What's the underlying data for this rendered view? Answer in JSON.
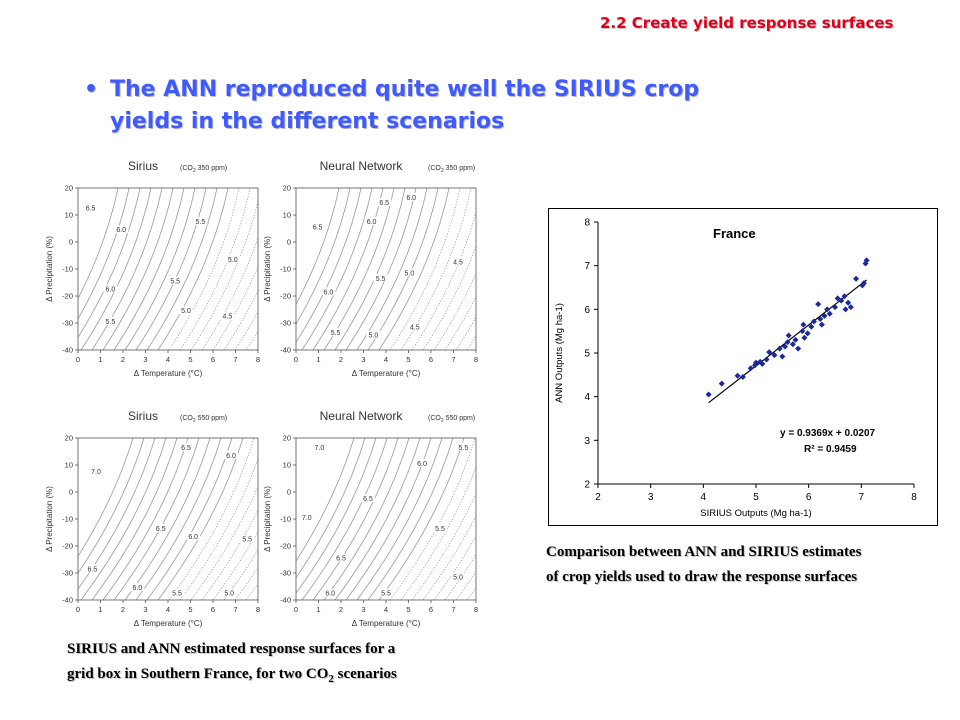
{
  "header": {
    "section": "2.2 Create yield response surfaces"
  },
  "bullet": {
    "marker": "•",
    "line1": "The ANN reproduced quite well the SIRIUS crop",
    "line2": "yields in the different scenarios"
  },
  "captions": {
    "left_line1": "SIRIUS and ANN estimated response surfaces for a",
    "left_line2_prefix": "grid box in Southern France, for two CO",
    "left_line2_sub": "2",
    "left_line2_suffix": " scenarios",
    "right_line1": "Comparison between ANN and SIRIUS estimates",
    "right_line2": "of crop yields used to draw the response surfaces"
  },
  "colors": {
    "section": "#e0001b",
    "bullet": "#3f5bff",
    "marker": "#1a2a9c",
    "contour": "#9a9a9a"
  },
  "panels_common": {
    "xlabel": "Δ Temperature (°C)",
    "ylabel": "Δ Precipitation (%)",
    "xticks": [
      "0",
      "1",
      "2",
      "3",
      "4",
      "5",
      "6",
      "7",
      "8"
    ],
    "yticks": [
      "20",
      "10",
      "0",
      "-10",
      "-20",
      "-30",
      "-40"
    ]
  },
  "panels": [
    {
      "name": "Sirius",
      "co2_prefix": "(CO",
      "co2_sub": "2",
      "co2_suffix": " 350 ppm)",
      "labels": [
        {
          "t": "6.5",
          "x": 0.7,
          "y": 12
        },
        {
          "t": "6.0",
          "x": 2.4,
          "y": 4
        },
        {
          "t": "5.5",
          "x": 6.8,
          "y": 7
        },
        {
          "t": "5.0",
          "x": 8.6,
          "y": -7
        },
        {
          "t": "6.0",
          "x": 1.8,
          "y": -18
        },
        {
          "t": "5.5",
          "x": 5.4,
          "y": -15
        },
        {
          "t": "5.0",
          "x": 6.0,
          "y": -26
        },
        {
          "t": "5.5",
          "x": 1.8,
          "y": -30
        },
        {
          "t": "4.5",
          "x": 8.3,
          "y": -28
        }
      ]
    },
    {
      "name": "Neural Network",
      "co2_prefix": "(CO",
      "co2_sub": "2",
      "co2_suffix": " 350 ppm)",
      "labels": [
        {
          "t": "6.5",
          "x": 1.2,
          "y": 5
        },
        {
          "t": "6.0",
          "x": 4.2,
          "y": 7
        },
        {
          "t": "6.5",
          "x": 4.9,
          "y": 14
        },
        {
          "t": "6.0",
          "x": 6.4,
          "y": 16
        },
        {
          "t": "4.5",
          "x": 9.0,
          "y": -8
        },
        {
          "t": "5.5",
          "x": 4.7,
          "y": -14
        },
        {
          "t": "5.0",
          "x": 6.3,
          "y": -12
        },
        {
          "t": "6.0",
          "x": 1.8,
          "y": -19
        },
        {
          "t": "5.5",
          "x": 2.2,
          "y": -34
        },
        {
          "t": "5.0",
          "x": 4.3,
          "y": -35
        },
        {
          "t": "4.5",
          "x": 6.6,
          "y": -32
        }
      ]
    },
    {
      "name": "Sirius",
      "co2_prefix": "(CO",
      "co2_sub": "2",
      "co2_suffix": " 550 ppm)",
      "labels": [
        {
          "t": "7.0",
          "x": 1.0,
          "y": 7
        },
        {
          "t": "6.5",
          "x": 6.0,
          "y": 16
        },
        {
          "t": "6.0",
          "x": 8.5,
          "y": 13
        },
        {
          "t": "6.5",
          "x": 4.6,
          "y": -14
        },
        {
          "t": "6.0",
          "x": 6.4,
          "y": -17
        },
        {
          "t": "5.5",
          "x": 9.4,
          "y": -18
        },
        {
          "t": "6.5",
          "x": 0.8,
          "y": -29
        },
        {
          "t": "6.0",
          "x": 3.3,
          "y": -36
        },
        {
          "t": "5.5",
          "x": 5.5,
          "y": -38
        },
        {
          "t": "5.0",
          "x": 8.4,
          "y": -38
        }
      ]
    },
    {
      "name": "Neural Network",
      "co2_prefix": "(CO",
      "co2_sub": "2",
      "co2_suffix": " 550 ppm)",
      "labels": [
        {
          "t": "7.0",
          "x": 1.3,
          "y": 16
        },
        {
          "t": "6.5",
          "x": 4.0,
          "y": -3
        },
        {
          "t": "6.0",
          "x": 7.0,
          "y": 10
        },
        {
          "t": "5.5",
          "x": 9.3,
          "y": 16
        },
        {
          "t": "7.0",
          "x": 0.6,
          "y": -10
        },
        {
          "t": "5.5",
          "x": 8.0,
          "y": -14
        },
        {
          "t": "6.5",
          "x": 2.5,
          "y": -25
        },
        {
          "t": "5.0",
          "x": 9.0,
          "y": -32
        },
        {
          "t": "6.0",
          "x": 1.9,
          "y": -38
        },
        {
          "t": "5.5",
          "x": 5.0,
          "y": -38
        }
      ]
    }
  ],
  "chart_data": {
    "type": "scatter",
    "title": "France",
    "xlabel": "SIRIUS Outputs (Mg ha-1)",
    "ylabel": "ANN Outputs (Mg ha-1)",
    "xlim": [
      2,
      8
    ],
    "ylim": [
      2,
      8
    ],
    "xticks": [
      "2",
      "3",
      "4",
      "5",
      "6",
      "7",
      "8"
    ],
    "yticks": [
      "2",
      "3",
      "4",
      "5",
      "6",
      "7",
      "8"
    ],
    "equation": "y = 0.9369x + 0.0207",
    "r2": "R² = 0.9459",
    "trend": {
      "slope": 0.9369,
      "intercept": 0.0207,
      "x_range": [
        4.1,
        7.1
      ]
    },
    "points": [
      [
        4.1,
        4.05
      ],
      [
        4.35,
        4.3
      ],
      [
        4.65,
        4.48
      ],
      [
        4.75,
        4.45
      ],
      [
        4.9,
        4.65
      ],
      [
        4.98,
        4.72
      ],
      [
        5.0,
        4.78
      ],
      [
        5.08,
        4.8
      ],
      [
        5.12,
        4.75
      ],
      [
        5.2,
        4.85
      ],
      [
        5.25,
        5.02
      ],
      [
        5.35,
        4.95
      ],
      [
        5.45,
        5.1
      ],
      [
        5.5,
        4.92
      ],
      [
        5.55,
        5.15
      ],
      [
        5.6,
        5.25
      ],
      [
        5.62,
        5.4
      ],
      [
        5.7,
        5.2
      ],
      [
        5.75,
        5.3
      ],
      [
        5.8,
        5.1
      ],
      [
        5.88,
        5.5
      ],
      [
        5.9,
        5.65
      ],
      [
        5.92,
        5.35
      ],
      [
        5.98,
        5.45
      ],
      [
        6.05,
        5.6
      ],
      [
        6.1,
        5.72
      ],
      [
        6.18,
        6.12
      ],
      [
        6.22,
        5.78
      ],
      [
        6.25,
        5.65
      ],
      [
        6.3,
        5.85
      ],
      [
        6.35,
        6.0
      ],
      [
        6.4,
        5.9
      ],
      [
        6.5,
        6.05
      ],
      [
        6.55,
        6.25
      ],
      [
        6.62,
        6.2
      ],
      [
        6.68,
        6.3
      ],
      [
        6.7,
        6.0
      ],
      [
        6.75,
        6.15
      ],
      [
        6.8,
        6.05
      ],
      [
        6.9,
        6.7
      ],
      [
        7.02,
        6.55
      ],
      [
        7.05,
        6.6
      ],
      [
        7.08,
        7.05
      ],
      [
        7.1,
        7.12
      ]
    ]
  }
}
